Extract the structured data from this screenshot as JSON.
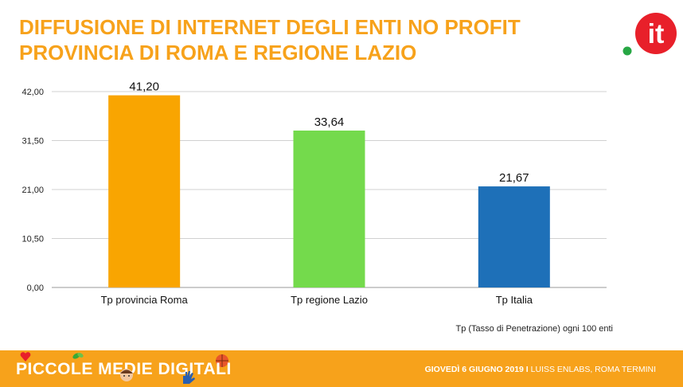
{
  "title": {
    "line1": "DIFFUSIONE DI INTERNET DEGLI ENTI NO PROFIT",
    "line2": "PROVINCIA DI ROMA E REGIONE LAZIO"
  },
  "logo": {
    "text": "it",
    "colors": {
      "circle": "#e8202a",
      "dot": "#27a744"
    }
  },
  "chart_data": {
    "type": "bar",
    "categories": [
      "Tp provincia Roma",
      "Tp regione Lazio",
      "Tp Italia"
    ],
    "values": [
      41.2,
      33.64,
      21.67
    ],
    "value_labels": [
      "41,20",
      "33,64",
      "21,67"
    ],
    "colors": [
      "#f9a501",
      "#74da4c",
      "#1e70b8"
    ],
    "ylim": [
      0,
      42
    ],
    "yticks": [
      0,
      10.5,
      21,
      31.5,
      42
    ],
    "ytick_labels": [
      "0,00",
      "10,50",
      "21,00",
      "31,50",
      "42,00"
    ],
    "grid": true,
    "xlabel": "",
    "ylabel": ""
  },
  "note": "Tp (Tasso di Penetrazione) ogni 100 enti",
  "footer": {
    "brand": "PICCOLE MEDIE DIGITALI",
    "event_date": "GIOVEDÌ 6 GIUGNO 2019 I",
    "event_place": " LUISS ENLABS, ROMA TERMINI",
    "bg": "#f7a21b"
  }
}
